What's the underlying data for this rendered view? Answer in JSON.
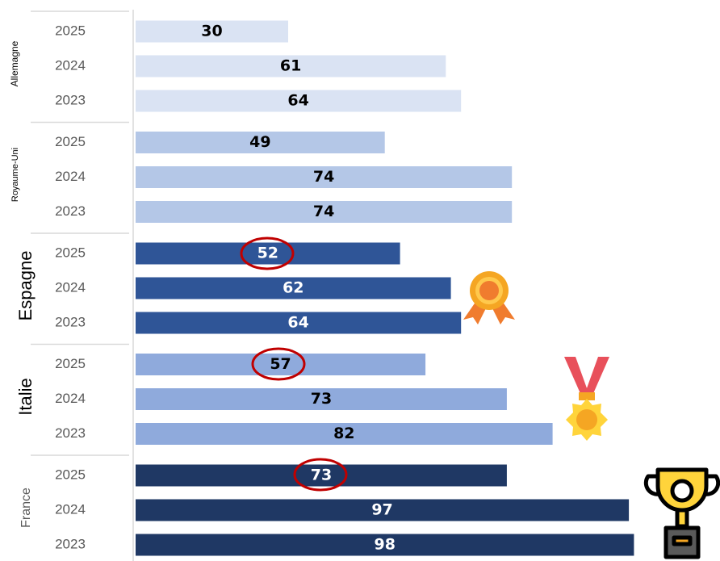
{
  "chart_data": {
    "type": "bar",
    "groups": [
      {
        "name": "Allemagne",
        "color": "#dae3f3",
        "label_color": "#000000",
        "years": [
          "2025",
          "2024",
          "2023"
        ],
        "values": [
          30,
          61,
          64
        ]
      },
      {
        "name": "Royaume-Uni",
        "color": "#b4c7e7",
        "label_color": "#000000",
        "years": [
          "2025",
          "2024",
          "2023"
        ],
        "values": [
          49,
          74,
          74
        ]
      },
      {
        "name": "Espagne",
        "color": "#2f5597",
        "label_color": "#ffffff",
        "years": [
          "2025",
          "2024",
          "2023"
        ],
        "values": [
          52,
          62,
          64
        ]
      },
      {
        "name": "Italie",
        "color": "#8faadc",
        "label_color": "#000000",
        "years": [
          "2025",
          "2024",
          "2023"
        ],
        "values": [
          57,
          73,
          82
        ]
      },
      {
        "name": "France",
        "color": "#1f3864",
        "label_color": "#ffffff",
        "years": [
          "2025",
          "2024",
          "2023"
        ],
        "values": [
          73,
          97,
          98
        ]
      }
    ],
    "xlim": [
      0,
      100
    ]
  }
}
